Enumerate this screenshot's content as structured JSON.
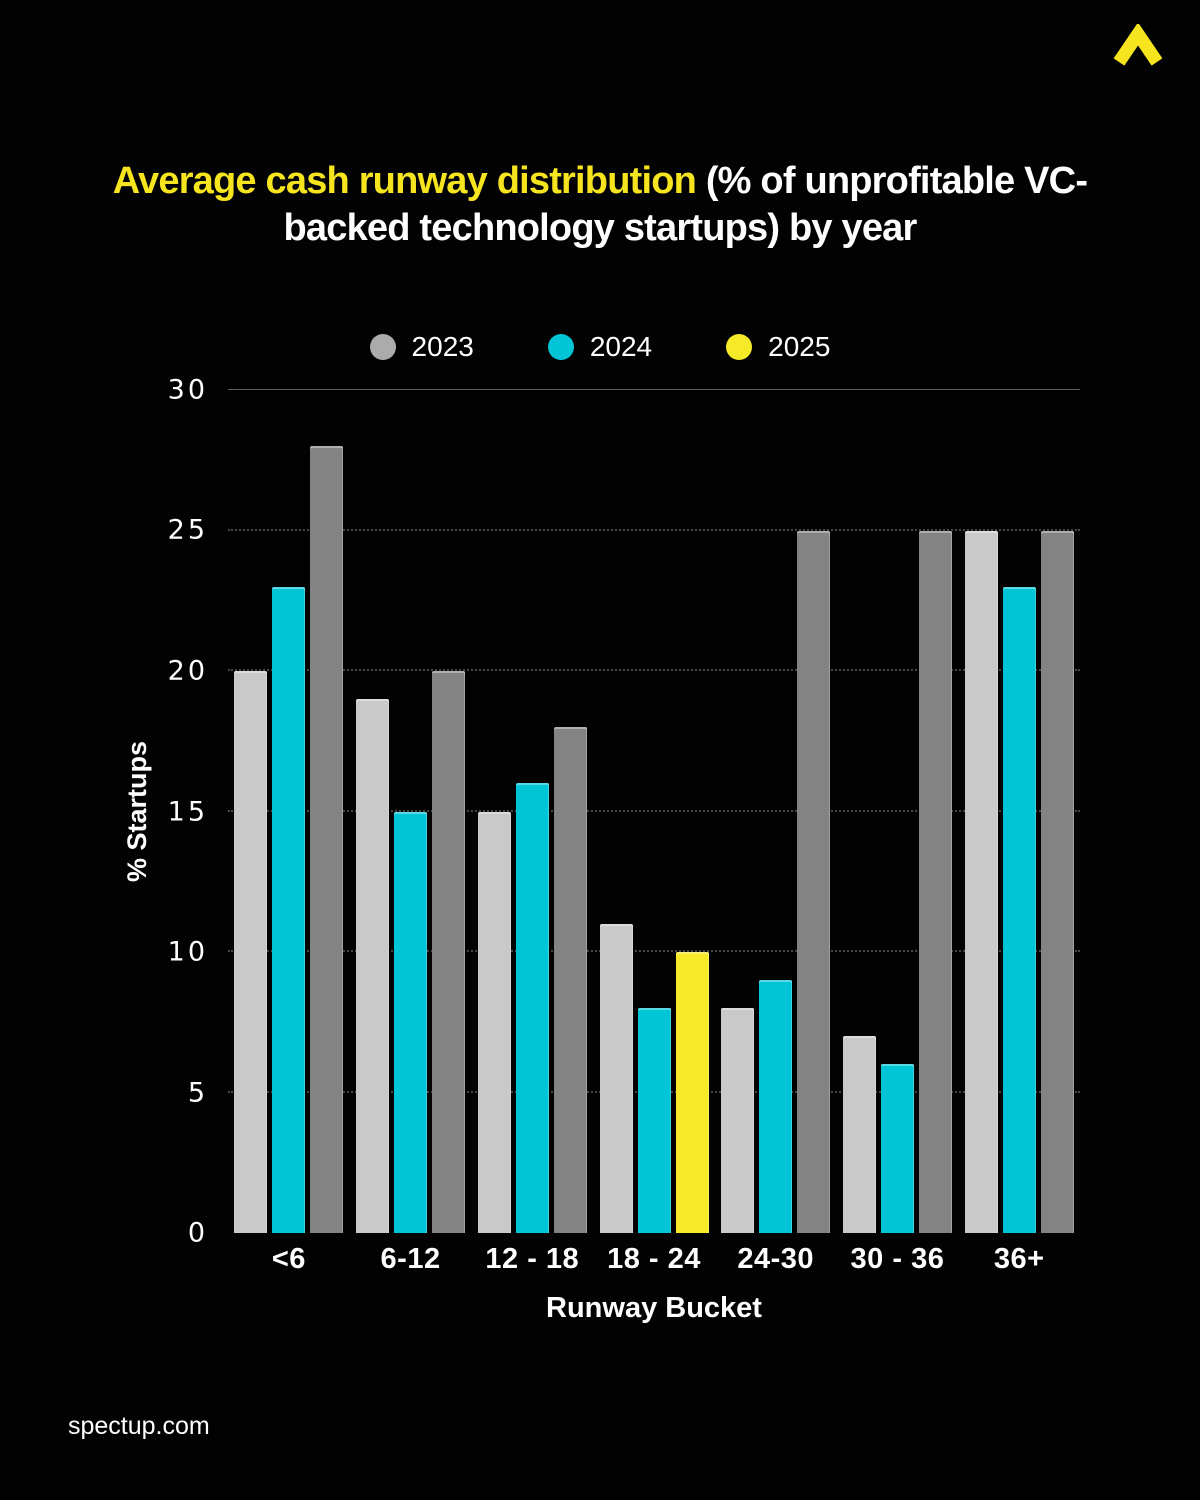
{
  "brand": {
    "logo_icon": "chevron-up-icon",
    "logo_color": "#f6e41f",
    "footer_text": "spectup.com"
  },
  "title": {
    "highlight": "Average cash runway distribution",
    "rest": " (% of unprofitable VC-backed technology startups) by year"
  },
  "chart_data": {
    "type": "bar",
    "title": "Average cash runway distribution (% of unprofitable VC-backed technology startups) by year",
    "xlabel": "Runway Bucket",
    "ylabel": "% Startups",
    "categories": [
      "<6",
      "6-12",
      "12 - 18",
      "18 - 24",
      "24-30",
      "30 - 36",
      "36+"
    ],
    "series": [
      {
        "name": "2023",
        "color": "#c9c9c9",
        "legend_color": "#ababab",
        "values": [
          20,
          19,
          15,
          11,
          8,
          7,
          25
        ]
      },
      {
        "name": "2024",
        "color": "#00c5d6",
        "legend_color": "#00c5d6",
        "values": [
          23,
          15,
          16,
          8,
          9,
          6,
          23
        ]
      },
      {
        "name": "2025",
        "color": "#838383",
        "legend_color": "#f6e927",
        "highlight": {
          "index": 3,
          "color": "#f6e927"
        },
        "values": [
          28,
          20,
          18,
          10,
          25,
          25,
          25
        ]
      }
    ],
    "ylim": [
      0,
      30
    ],
    "yticks": [
      0,
      5,
      10,
      15,
      20,
      25,
      30
    ],
    "grid": "horizontal dotted lines, solid line at 30",
    "legend_position": "top-center",
    "background": "#020202"
  }
}
